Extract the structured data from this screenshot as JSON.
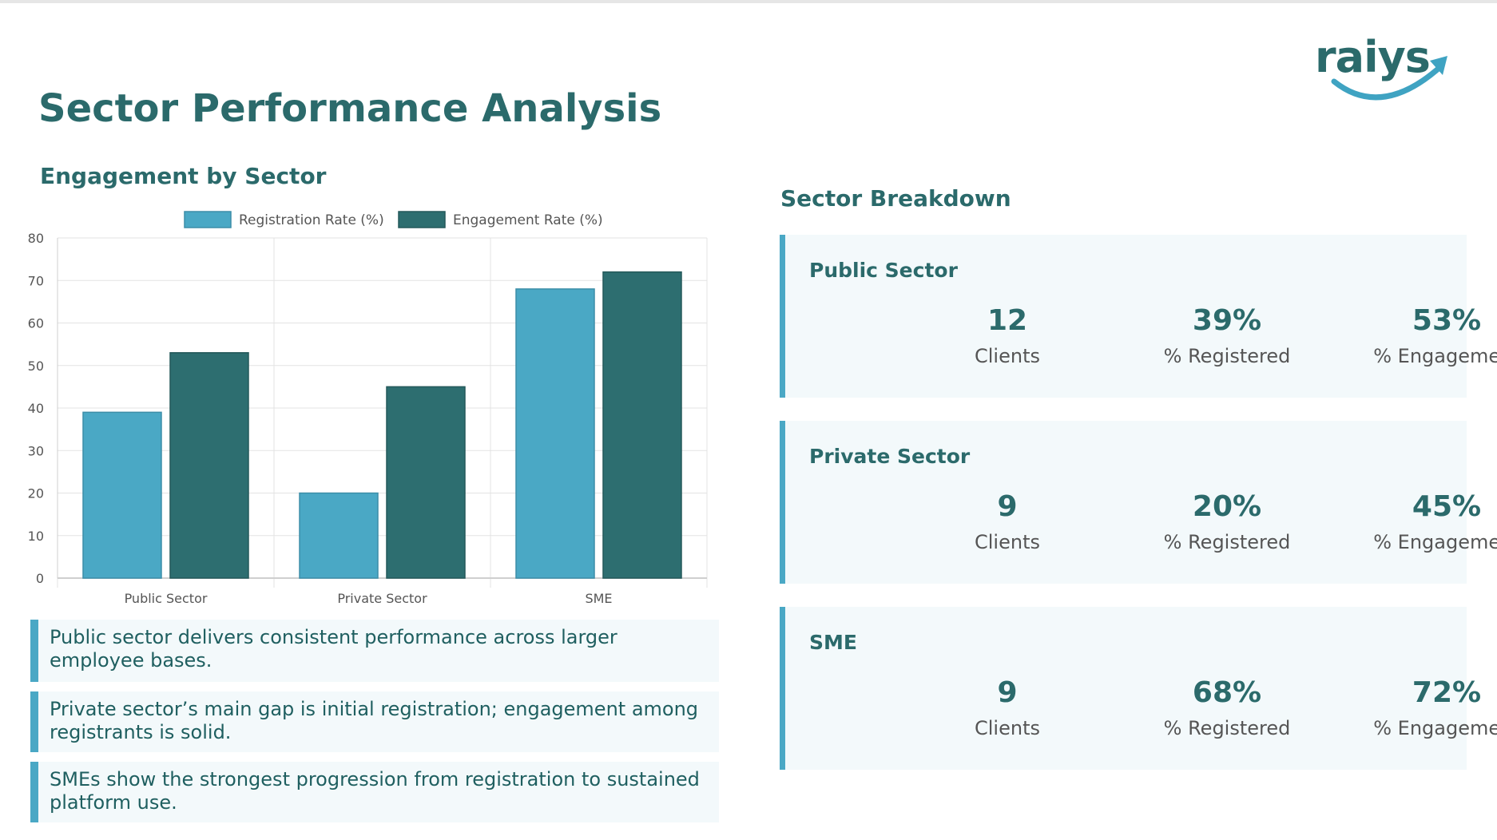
{
  "page_title": "Sector Performance Analysis",
  "logo_text": "raiys",
  "chart_title": "Engagement by Sector",
  "chart_data": {
    "type": "bar",
    "categories": [
      "Public Sector",
      "Private Sector",
      "SME"
    ],
    "series": [
      {
        "name": "Registration Rate (%)",
        "values": [
          39,
          20,
          68
        ],
        "color": "#4aa8c5"
      },
      {
        "name": "Engagement Rate (%)",
        "values": [
          53,
          45,
          72
        ],
        "color": "#2d6e70"
      }
    ],
    "ylim": [
      0,
      80
    ],
    "yticks": [
      0,
      10,
      20,
      30,
      40,
      50,
      60,
      70,
      80
    ],
    "grid": true,
    "legend_position": "top-center"
  },
  "insights": [
    "Public sector delivers consistent performance across larger employee bases.",
    "Private sector’s main gap is initial registration; engagement among registrants is solid.",
    "SMEs show the strongest progression from registration to sustained platform use."
  ],
  "breakdown_title": "Sector Breakdown",
  "sectors": [
    {
      "name": "Public Sector",
      "clients": "12",
      "clients_label": "Clients",
      "registered": "39%",
      "registered_label": "% Registered",
      "engagement": "53%",
      "engagement_label": "% Engagement"
    },
    {
      "name": "Private Sector",
      "clients": "9",
      "clients_label": "Clients",
      "registered": "20%",
      "registered_label": "% Registered",
      "engagement": "45%",
      "engagement_label": "% Engagement"
    },
    {
      "name": "SME",
      "clients": "9",
      "clients_label": "Clients",
      "registered": "68%",
      "registered_label": "% Registered",
      "engagement": "72%",
      "engagement_label": "% Engagement"
    }
  ],
  "colors": {
    "brand": "#2b6a6b",
    "accent": "#4aa8c5",
    "dark_bar": "#2d6e70"
  }
}
